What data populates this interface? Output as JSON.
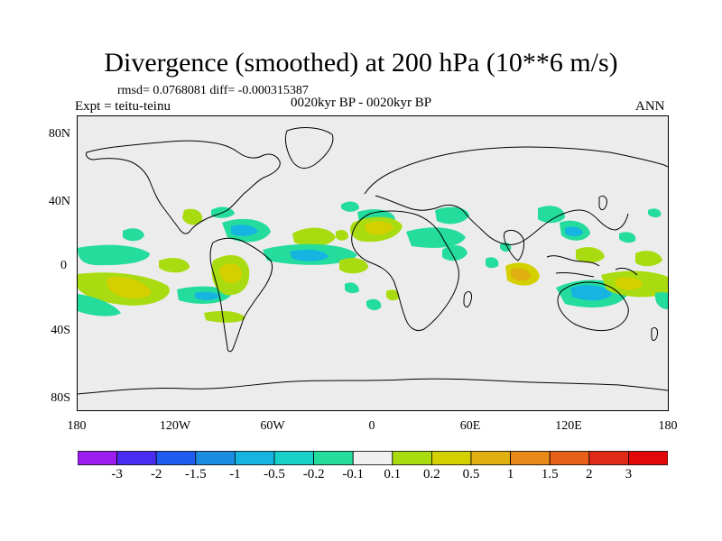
{
  "header": {
    "title": "Divergence (smoothed) at 200 hPa (10**6 m/s)",
    "stats": "rmsd= 0.0768081 diff= -0.000315387",
    "expt": "Expt = teitu-teinu",
    "period": "0020kyr BP - 0020kyr BP",
    "season": "ANN"
  },
  "axes": {
    "y_labels": [
      "80N",
      "40N",
      "0",
      "40S",
      "80S"
    ],
    "x_labels": [
      "180",
      "120W",
      "60W",
      "0",
      "60E",
      "120E",
      "180"
    ]
  },
  "colorbar": {
    "labels": [
      "-3",
      "-2",
      "-1.5",
      "-1",
      "-0.5",
      "-0.2",
      "-0.1",
      "0.1",
      "0.2",
      "0.5",
      "1",
      "1.5",
      "2",
      "3"
    ],
    "colors": [
      "#9c1df0",
      "#4a2cf0",
      "#1e5cf0",
      "#1c8ce0",
      "#16b4e0",
      "#18d0c8",
      "#24dc9c",
      "#f0f0f0",
      "#a8dc10",
      "#d4d000",
      "#e0b010",
      "#e88818",
      "#e86018",
      "#e02a18",
      "#e00808"
    ]
  },
  "colors": {
    "land_ocean_background": "#ececec",
    "coastline": "#000000"
  }
}
